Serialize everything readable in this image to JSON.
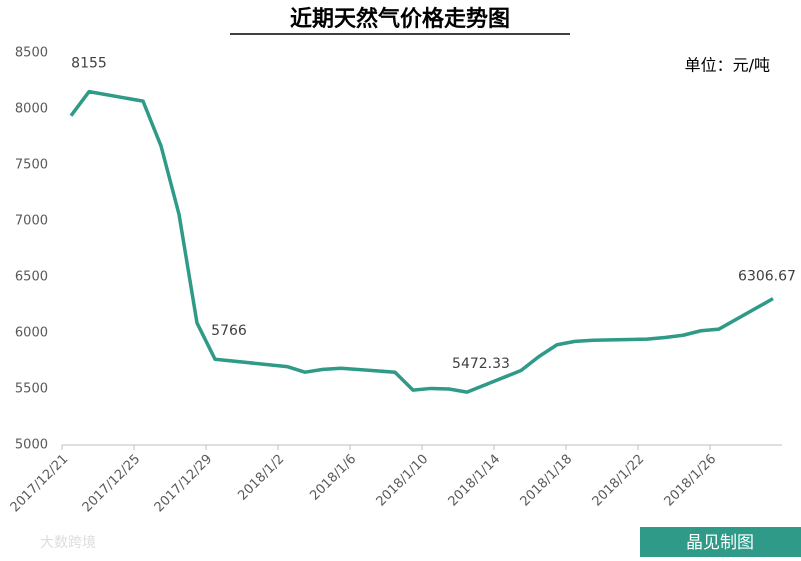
{
  "chart_data": {
    "type": "line",
    "title": "近期天然气价格走势图",
    "unit_note": "单位：元/吨",
    "credit": "晶见制图",
    "watermark": "大数跨境",
    "x": [
      "2017/12/21",
      "2017/12/22",
      "2017/12/25",
      "2017/12/26",
      "2017/12/27",
      "2017/12/28",
      "2017/12/29",
      "2018/1/2",
      "2018/1/3",
      "2018/1/4",
      "2018/1/5",
      "2018/1/8",
      "2018/1/9",
      "2018/1/10",
      "2018/1/11",
      "2018/1/12",
      "2018/1/15",
      "2018/1/16",
      "2018/1/17",
      "2018/1/18",
      "2018/1/19",
      "2018/1/22",
      "2018/1/23",
      "2018/1/24",
      "2018/1/25",
      "2018/1/26",
      "2018/1/29"
    ],
    "series": [
      {
        "color": "#2e9a87",
        "values": [
          7940,
          8155,
          8070,
          7670,
          7060,
          6090,
          5766,
          5700,
          5650,
          5675,
          5685,
          5650,
          5490,
          5505,
          5500,
          5472.33,
          5665,
          5790,
          5895,
          5925,
          5935,
          5945,
          5960,
          5980,
          6020,
          6035,
          6306.67
        ],
        "value_labels": [
          null,
          "8155",
          null,
          null,
          null,
          null,
          "5766",
          null,
          null,
          null,
          null,
          null,
          null,
          null,
          null,
          "5472.33",
          null,
          null,
          null,
          null,
          null,
          null,
          null,
          null,
          null,
          null,
          "6306.67"
        ]
      }
    ],
    "xlim": [
      "2017/12/21",
      "2018/1/30"
    ],
    "xticks": [
      "2017/12/21",
      "2017/12/25",
      "2017/12/29",
      "2018/1/2",
      "2018/1/6",
      "2018/1/10",
      "2018/1/14",
      "2018/1/18",
      "2018/1/22",
      "2018/1/26"
    ],
    "ylim": [
      5000,
      8500
    ],
    "yticks": [
      5000,
      5500,
      6000,
      6500,
      7000,
      7500,
      8000,
      8500
    ],
    "grid": false
  }
}
